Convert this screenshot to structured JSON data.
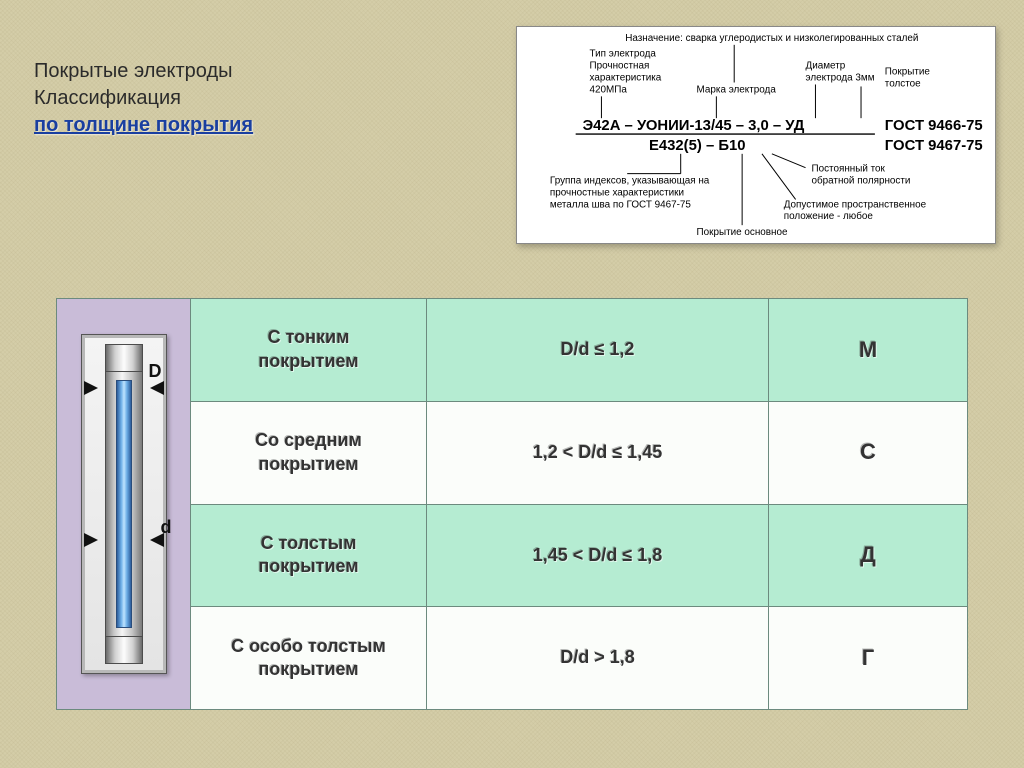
{
  "title": {
    "line1": "Покрытые электроды",
    "line2": "Классификация",
    "line3": "по толщине покрытия"
  },
  "specDiagram": {
    "topNote": "Назначение: сварка углеродистых и низколегированных сталей",
    "labels": {
      "typeL1": "Тип электрода",
      "typeL2": "Прочностная",
      "typeL3": "характеристика",
      "typeL4": "420МПа",
      "brand": "Марка электрода",
      "diamL1": "Диаметр",
      "diamL2": "электрода 3мм",
      "coatL1": "Покрытие",
      "coatL2": "толстое",
      "idxL1": "Группа индексов, указывающая на",
      "idxL2": "прочностные характеристики",
      "idxL3": "металла шва по ГОСТ 9467-75",
      "curL1": "Постоянный ток",
      "curL2": "обратной полярности",
      "posL1": "Допустимое пространственное",
      "posL2": "положение - любое",
      "baseCoat": "Покрытие основное"
    },
    "centerLine1": "Э42А – УОНИИ-13/45 – 3,0 – УД",
    "centerLine2": "Е432(5) – Б10",
    "gost1": "ГОСТ 9466-75",
    "gost2": "ГОСТ 9467-75"
  },
  "electrode": {
    "outerDim": "D",
    "innerDim": "d"
  },
  "table": {
    "colors": {
      "green": "#b5ecd2",
      "white": "#fbfdfa",
      "border": "#6c8a7e",
      "imgPanel": "#c9bcd8"
    },
    "rows": [
      {
        "name": "С тонким\nпокрытием",
        "ratio": "D/d ≤ 1,2",
        "code": "М",
        "band": "green"
      },
      {
        "name": "Со средним\nпокрытием",
        "ratio": "1,2 < D/d ≤ 1,45",
        "code": "С",
        "band": "white"
      },
      {
        "name": "С толстым\nпокрытием",
        "ratio": "1,45 < D/d ≤ 1,8",
        "code": "Д",
        "band": "green"
      },
      {
        "name": "С особо толстым\nпокрытием",
        "ratio": "D/d > 1,8",
        "code": "Г",
        "band": "white"
      }
    ]
  }
}
